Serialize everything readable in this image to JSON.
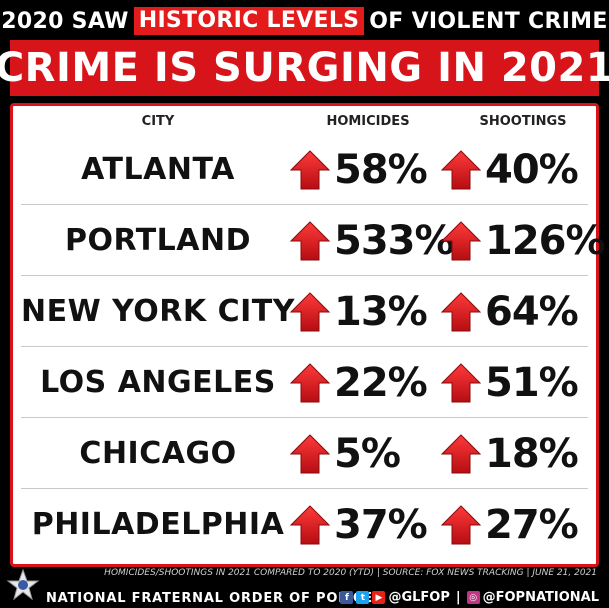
{
  "header": {
    "prefix": "2020 SAW",
    "highlight": "HISTORIC LEVELS",
    "suffix": "OF VIOLENT CRIME"
  },
  "banner": "CRIME IS SURGING IN 2021",
  "columns": {
    "city": "CITY",
    "homicides": "HOMICIDES",
    "shootings": "SHOOTINGS"
  },
  "rows": [
    {
      "city": "ATLANTA",
      "homicides": "58%",
      "shootings": "40%"
    },
    {
      "city": "PORTLAND",
      "homicides": "533%",
      "shootings": "126%"
    },
    {
      "city": "NEW YORK CITY",
      "homicides": "13%",
      "shootings": "64%"
    },
    {
      "city": "LOS ANGELES",
      "homicides": "22%",
      "shootings": "51%"
    },
    {
      "city": "CHICAGO",
      "homicides": "5%",
      "shootings": "18%"
    },
    {
      "city": "PHILADELPHIA",
      "homicides": "37%",
      "shootings": "27%"
    }
  ],
  "note": "HOMICIDES/SHOOTINGS IN 2021 COMPARED TO 2020 (YTD)  |  SOURCE: FOX NEWS TRACKING  |  JUNE 21, 2021",
  "footer": {
    "org": "NATIONAL FRATERNAL ORDER OF POLICE",
    "handle1": "@GLFOP",
    "separator": "|",
    "handle2": "@FOPNATIONAL"
  },
  "colors": {
    "accent": "#d8141b",
    "arrow": "#e0151b",
    "background": "#000000"
  },
  "icons": [
    "arrow-up-icon",
    "facebook-icon",
    "twitter-icon",
    "youtube-icon",
    "instagram-icon",
    "star-badge-icon"
  ]
}
